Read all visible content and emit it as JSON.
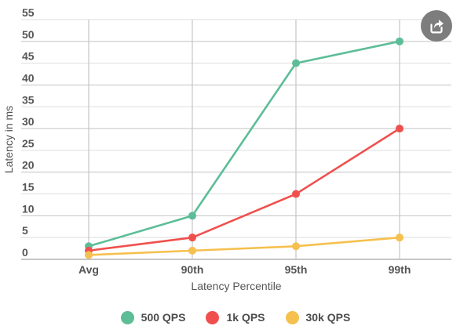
{
  "chart_data": {
    "type": "line",
    "categories": [
      "Avg",
      "90th",
      "95th",
      "99th"
    ],
    "series": [
      {
        "name": "500 QPS",
        "color": "#5CBD97",
        "values": [
          3,
          10,
          45,
          50
        ]
      },
      {
        "name": "1k QPS",
        "color": "#F0504D",
        "values": [
          2,
          5,
          15,
          30
        ]
      },
      {
        "name": "30k QPS",
        "color": "#F5C04E",
        "values": [
          1,
          2,
          3,
          5
        ]
      }
    ],
    "title": "",
    "xlabel": "Latency Percentile",
    "ylabel": "Latency in ms",
    "ylim": [
      0,
      55
    ],
    "ytick_step": 5,
    "grid": true,
    "legend_position": "bottom",
    "grid_minor_color": "#DDDDDD",
    "grid_major_color": "#C2C2C2",
    "axis_line_color": "#B2B2B2",
    "category_line_color": "#C6C6C6",
    "text_color": "#555555"
  },
  "ui": {
    "export_button": {
      "icon": "share-icon",
      "background": "#7D7D7D",
      "icon_color": "#FFFFFF"
    }
  }
}
